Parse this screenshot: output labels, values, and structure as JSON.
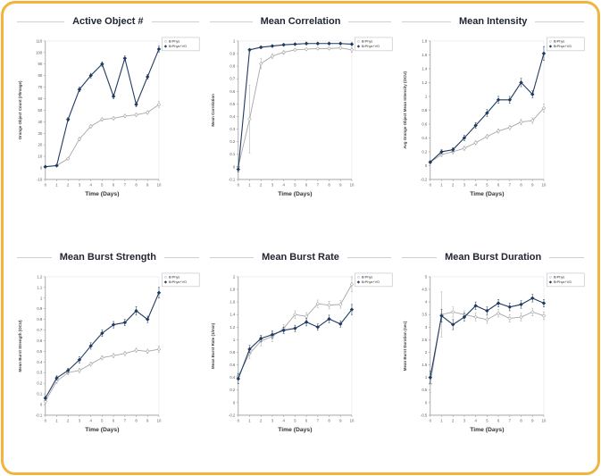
{
  "frame": {
    "border_color": "#f3b33c",
    "background": "#ffffff"
  },
  "style_colors": {
    "axis": "#9b9b9b",
    "tick_text": "#595959",
    "title_text": "#1f2430",
    "label_text": "#404040",
    "xlabel_text": "#333333",
    "plot_border": "#e3e3e3",
    "legend_border": "#b0b0b0",
    "control_series": "#a6a6a6",
    "treatment_series": "#1f3a5f"
  },
  "chart_data": [
    {
      "type": "line",
      "title": "Active Object #",
      "xlabel": "Time (Days)",
      "ylabel": "Orange Object Count (#/Image)",
      "x": [
        0,
        1,
        2,
        3,
        4,
        5,
        6,
        7,
        8,
        9,
        10
      ],
      "ylim": [
        -10,
        110
      ],
      "yticks": [
        -10,
        0,
        10,
        20,
        30,
        40,
        50,
        60,
        70,
        80,
        90,
        100,
        110
      ],
      "grid": false,
      "legend_position": "top-right",
      "series": [
        {
          "name": "BrPhys",
          "marker": "open-diamond",
          "color": "#a6a6a6",
          "values": [
            1,
            2,
            8,
            25,
            36,
            42,
            43,
            45,
            46,
            48,
            55
          ],
          "errors": [
            0.5,
            0.5,
            1,
            1.5,
            1.5,
            1.5,
            1.5,
            1.5,
            1.5,
            1.5,
            2.5
          ]
        },
        {
          "name": "BrPhys+VG",
          "marker": "filled-diamond",
          "color": "#1f3a5f",
          "values": [
            1,
            2,
            42,
            68,
            80,
            90,
            62,
            95,
            55,
            79,
            103
          ],
          "errors": [
            0.5,
            0.5,
            1.5,
            2,
            2,
            2,
            2,
            2,
            2,
            2,
            2.5
          ]
        }
      ]
    },
    {
      "type": "line",
      "title": "Mean Correlation",
      "xlabel": "Time (Days)",
      "ylabel": "Mean Correlation",
      "x": [
        0,
        1,
        2,
        3,
        4,
        5,
        6,
        7,
        8,
        9,
        10
      ],
      "ylim": [
        -0.1,
        1
      ],
      "yticks": [
        -0.1,
        0,
        0.1,
        0.2,
        0.3,
        0.4,
        0.5,
        0.6,
        0.7,
        0.8,
        0.9,
        1
      ],
      "grid": false,
      "legend_position": "top-right",
      "series": [
        {
          "name": "BrPhys",
          "marker": "open-diamond",
          "color": "#a6a6a6",
          "values": [
            0,
            0.38,
            0.82,
            0.88,
            0.91,
            0.93,
            0.935,
            0.94,
            0.94,
            0.945,
            0.93
          ],
          "errors": [
            0.02,
            0.27,
            0.04,
            0.02,
            0.015,
            0.01,
            0.01,
            0.01,
            0.01,
            0.01,
            0.02
          ]
        },
        {
          "name": "BrPhys+VG",
          "marker": "filled-diamond",
          "color": "#1f3a5f",
          "values": [
            -0.02,
            0.93,
            0.95,
            0.96,
            0.97,
            0.975,
            0.98,
            0.98,
            0.98,
            0.98,
            0.975
          ],
          "errors": [
            0.02,
            0.01,
            0.01,
            0.008,
            0.008,
            0.008,
            0.008,
            0.008,
            0.008,
            0.008,
            0.01
          ]
        }
      ]
    },
    {
      "type": "line",
      "title": "Mean Intensity",
      "xlabel": "Time (Days)",
      "ylabel": "Avg Orange Object Mean Intensity (OCU)",
      "x": [
        0,
        1,
        2,
        3,
        4,
        5,
        6,
        7,
        8,
        9,
        10
      ],
      "ylim": [
        -0.2,
        1.8
      ],
      "yticks": [
        -0.2,
        0,
        0.2,
        0.4,
        0.6,
        0.8,
        1,
        1.2,
        1.4,
        1.6,
        1.8
      ],
      "grid": false,
      "legend_position": "top-right",
      "series": [
        {
          "name": "BrPhys",
          "marker": "open-diamond",
          "color": "#a6a6a6",
          "values": [
            0.05,
            0.16,
            0.2,
            0.25,
            0.33,
            0.42,
            0.5,
            0.55,
            0.63,
            0.65,
            0.83
          ],
          "errors": [
            0.02,
            0.03,
            0.03,
            0.03,
            0.03,
            0.03,
            0.03,
            0.03,
            0.04,
            0.04,
            0.06
          ]
        },
        {
          "name": "BrPhys+VG",
          "marker": "filled-diamond",
          "color": "#1f3a5f",
          "values": [
            0.05,
            0.2,
            0.23,
            0.4,
            0.58,
            0.76,
            0.95,
            0.95,
            1.2,
            1.03,
            1.62
          ],
          "errors": [
            0.02,
            0.03,
            0.03,
            0.04,
            0.04,
            0.05,
            0.05,
            0.05,
            0.06,
            0.05,
            0.1
          ]
        }
      ]
    },
    {
      "type": "line",
      "title": "Mean Burst Strength",
      "xlabel": "Time (Days)",
      "ylabel": "Mean Burst Strength (OCU)",
      "x": [
        0,
        1,
        2,
        3,
        4,
        5,
        6,
        7,
        8,
        9,
        10
      ],
      "ylim": [
        -0.1,
        1.2
      ],
      "yticks": [
        -0.1,
        0,
        0.1,
        0.2,
        0.3,
        0.4,
        0.5,
        0.6,
        0.7,
        0.8,
        0.9,
        1,
        1.1,
        1.2
      ],
      "grid": false,
      "legend_position": "top-right",
      "series": [
        {
          "name": "BrPhys",
          "marker": "open-diamond",
          "color": "#a6a6a6",
          "values": [
            0.03,
            0.22,
            0.3,
            0.32,
            0.38,
            0.44,
            0.46,
            0.48,
            0.51,
            0.5,
            0.52
          ],
          "errors": [
            0.02,
            0.02,
            0.02,
            0.02,
            0.02,
            0.02,
            0.02,
            0.02,
            0.02,
            0.02,
            0.03
          ]
        },
        {
          "name": "BrPhys+VG",
          "marker": "filled-diamond",
          "color": "#1f3a5f",
          "values": [
            0.06,
            0.25,
            0.32,
            0.42,
            0.55,
            0.67,
            0.75,
            0.77,
            0.88,
            0.8,
            1.05
          ],
          "errors": [
            0.02,
            0.02,
            0.02,
            0.03,
            0.03,
            0.03,
            0.03,
            0.03,
            0.04,
            0.03,
            0.05
          ]
        }
      ]
    },
    {
      "type": "line",
      "title": "Mean Burst Rate",
      "xlabel": "Time (Days)",
      "ylabel": "Mean Burst Rate (1/min)",
      "x": [
        0,
        1,
        2,
        3,
        4,
        5,
        6,
        7,
        8,
        9,
        10
      ],
      "ylim": [
        -0.2,
        2
      ],
      "yticks": [
        -0.2,
        0,
        0.2,
        0.4,
        0.6,
        0.8,
        1,
        1.2,
        1.4,
        1.6,
        1.8,
        2
      ],
      "grid": false,
      "legend_position": "top-right",
      "series": [
        {
          "name": "BrPhys",
          "marker": "open-diamond",
          "color": "#a6a6a6",
          "values": [
            0.42,
            0.78,
            0.98,
            1.05,
            1.18,
            1.4,
            1.37,
            1.57,
            1.55,
            1.56,
            1.88
          ],
          "errors": [
            0.06,
            0.08,
            0.08,
            0.08,
            0.06,
            0.06,
            0.06,
            0.06,
            0.06,
            0.06,
            0.12
          ]
        },
        {
          "name": "BrPhys+VG",
          "marker": "filled-diamond",
          "color": "#1f3a5f",
          "values": [
            0.38,
            0.85,
            1.02,
            1.08,
            1.15,
            1.18,
            1.28,
            1.2,
            1.33,
            1.25,
            1.48
          ],
          "errors": [
            0.08,
            0.06,
            0.05,
            0.06,
            0.05,
            0.05,
            0.06,
            0.05,
            0.06,
            0.05,
            0.08
          ]
        }
      ]
    },
    {
      "type": "line",
      "title": "Mean Burst Duration",
      "xlabel": "Time (Days)",
      "ylabel": "Mean Burst Duration (sec)",
      "x": [
        0,
        1,
        2,
        3,
        4,
        5,
        6,
        7,
        8,
        9,
        10
      ],
      "ylim": [
        -0.5,
        5
      ],
      "yticks": [
        -0.5,
        0,
        0.5,
        1,
        1.5,
        2,
        2.5,
        3,
        3.5,
        4,
        4.5,
        5
      ],
      "grid": false,
      "legend_position": "top-right",
      "series": [
        {
          "name": "BrPhys",
          "marker": "open-diamond",
          "color": "#a6a6a6",
          "values": [
            0.75,
            3.5,
            3.6,
            3.5,
            3.4,
            3.3,
            3.55,
            3.35,
            3.4,
            3.6,
            3.45
          ],
          "errors": [
            0.35,
            0.9,
            0.2,
            0.15,
            0.15,
            0.15,
            0.15,
            0.15,
            0.15,
            0.15,
            0.15
          ]
        },
        {
          "name": "BrPhys+VG",
          "marker": "filled-diamond",
          "color": "#1f3a5f",
          "values": [
            1,
            3.45,
            3.1,
            3.4,
            3.85,
            3.65,
            3.95,
            3.8,
            3.9,
            4.15,
            3.95
          ],
          "errors": [
            0.25,
            0.25,
            0.2,
            0.15,
            0.15,
            0.15,
            0.15,
            0.15,
            0.15,
            0.15,
            0.15
          ]
        }
      ]
    }
  ]
}
